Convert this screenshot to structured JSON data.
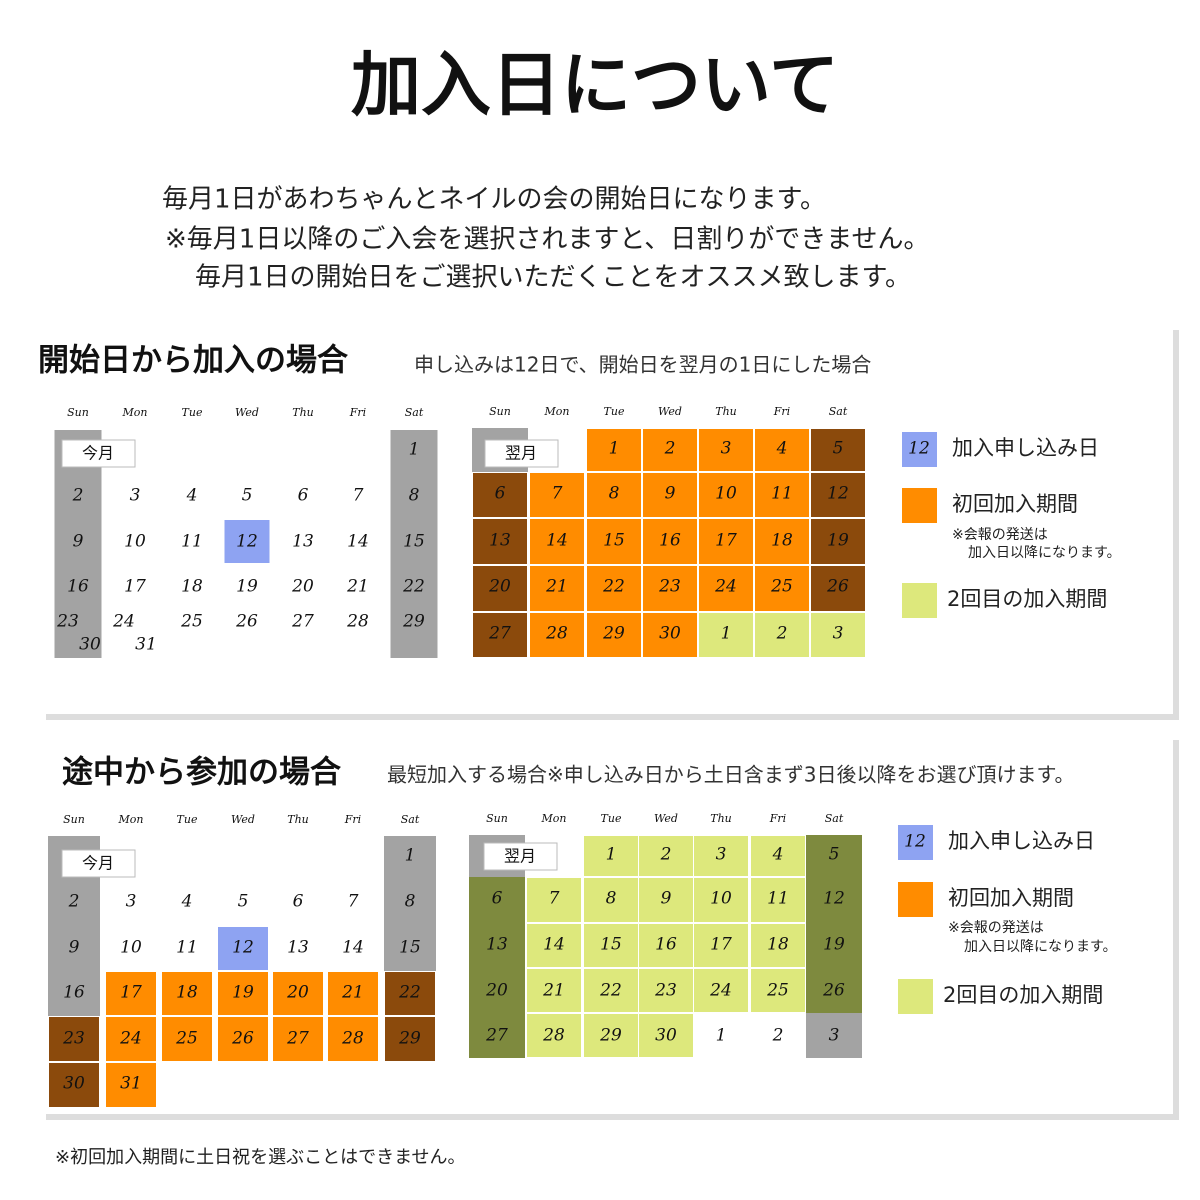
{
  "title": "加入日について",
  "intro": [
    "毎月1日があわちゃんとネイルの会の開始日になります。",
    "※毎月1日以降のご入会を選択されますと、日割りができません。",
    "毎月1日の開始日をご選択いただくことをオススメ致します。"
  ],
  "sections": [
    {
      "heading": "開始日から加入の場合",
      "note": "申し込みは12日で、開始日を翌月の1日にした場合",
      "calendars": [
        {
          "month_label": "今月",
          "weekdays": [
            "Sun",
            "Mon",
            "Tue",
            "Wed",
            "Thu",
            "Fri",
            "Sat"
          ],
          "weeks": [
            [
              null,
              null,
              null,
              null,
              null,
              null,
              1
            ],
            [
              2,
              3,
              4,
              5,
              6,
              7,
              8
            ],
            [
              9,
              10,
              11,
              12,
              13,
              14,
              15
            ],
            [
              16,
              17,
              18,
              19,
              20,
              21,
              22
            ],
            [
              23,
              24,
              25,
              26,
              27,
              28,
              29
            ],
            [
              30,
              31,
              null,
              null,
              null,
              null,
              null
            ]
          ]
        },
        {
          "month_label": "翌月",
          "weekdays": [
            "Sun",
            "Mon",
            "Tue",
            "Wed",
            "Thu",
            "Fri",
            "Sat"
          ],
          "weeks": [
            [
              null,
              null,
              1,
              2,
              3,
              4,
              5
            ],
            [
              6,
              7,
              8,
              9,
              10,
              11,
              12
            ],
            [
              13,
              14,
              15,
              16,
              17,
              18,
              19
            ],
            [
              20,
              21,
              22,
              23,
              24,
              25,
              26
            ],
            [
              27,
              28,
              29,
              30,
              1,
              2,
              3
            ]
          ]
        }
      ],
      "legend": [
        {
          "sample": "12",
          "label": "加入申し込み日"
        },
        {
          "label": "初回加入期間",
          "note": [
            "※会報の発送は",
            "加入日以降になります。"
          ]
        },
        {
          "label": "2回目の加入期間"
        }
      ]
    },
    {
      "heading": "途中から参加の場合",
      "note": "最短加入する場合※申し込み日から土日含まず3日後以降をお選び頂けます。",
      "calendars": [
        {
          "month_label": "今月",
          "weekdays": [
            "Sun",
            "Mon",
            "Tue",
            "Wed",
            "Thu",
            "Fri",
            "Sat"
          ],
          "weeks": [
            [
              null,
              null,
              null,
              null,
              null,
              null,
              1
            ],
            [
              2,
              3,
              4,
              5,
              6,
              7,
              8
            ],
            [
              9,
              10,
              11,
              12,
              13,
              14,
              15
            ],
            [
              16,
              17,
              18,
              19,
              20,
              21,
              22
            ],
            [
              23,
              24,
              25,
              26,
              27,
              28,
              29
            ],
            [
              30,
              31,
              null,
              null,
              null,
              null,
              null
            ]
          ]
        },
        {
          "month_label": "翌月",
          "weekdays": [
            "Sun",
            "Mon",
            "Tue",
            "Wed",
            "Thu",
            "Fri",
            "Sat"
          ],
          "weeks": [
            [
              null,
              null,
              1,
              2,
              3,
              4,
              5
            ],
            [
              6,
              7,
              8,
              9,
              10,
              11,
              12
            ],
            [
              13,
              14,
              15,
              16,
              17,
              18,
              19
            ],
            [
              20,
              21,
              22,
              23,
              24,
              25,
              26
            ],
            [
              27,
              28,
              29,
              30,
              1,
              2,
              3
            ]
          ]
        }
      ],
      "legend": [
        {
          "sample": "12",
          "label": "加入申し込み日"
        },
        {
          "label": "初回加入期間",
          "note": [
            "※会報の発送は",
            "加入日以降になります。"
          ]
        },
        {
          "label": "2回目の加入期間"
        }
      ]
    }
  ],
  "footnote": "※初回加入期間に土日祝を選ぶことはできません。"
}
